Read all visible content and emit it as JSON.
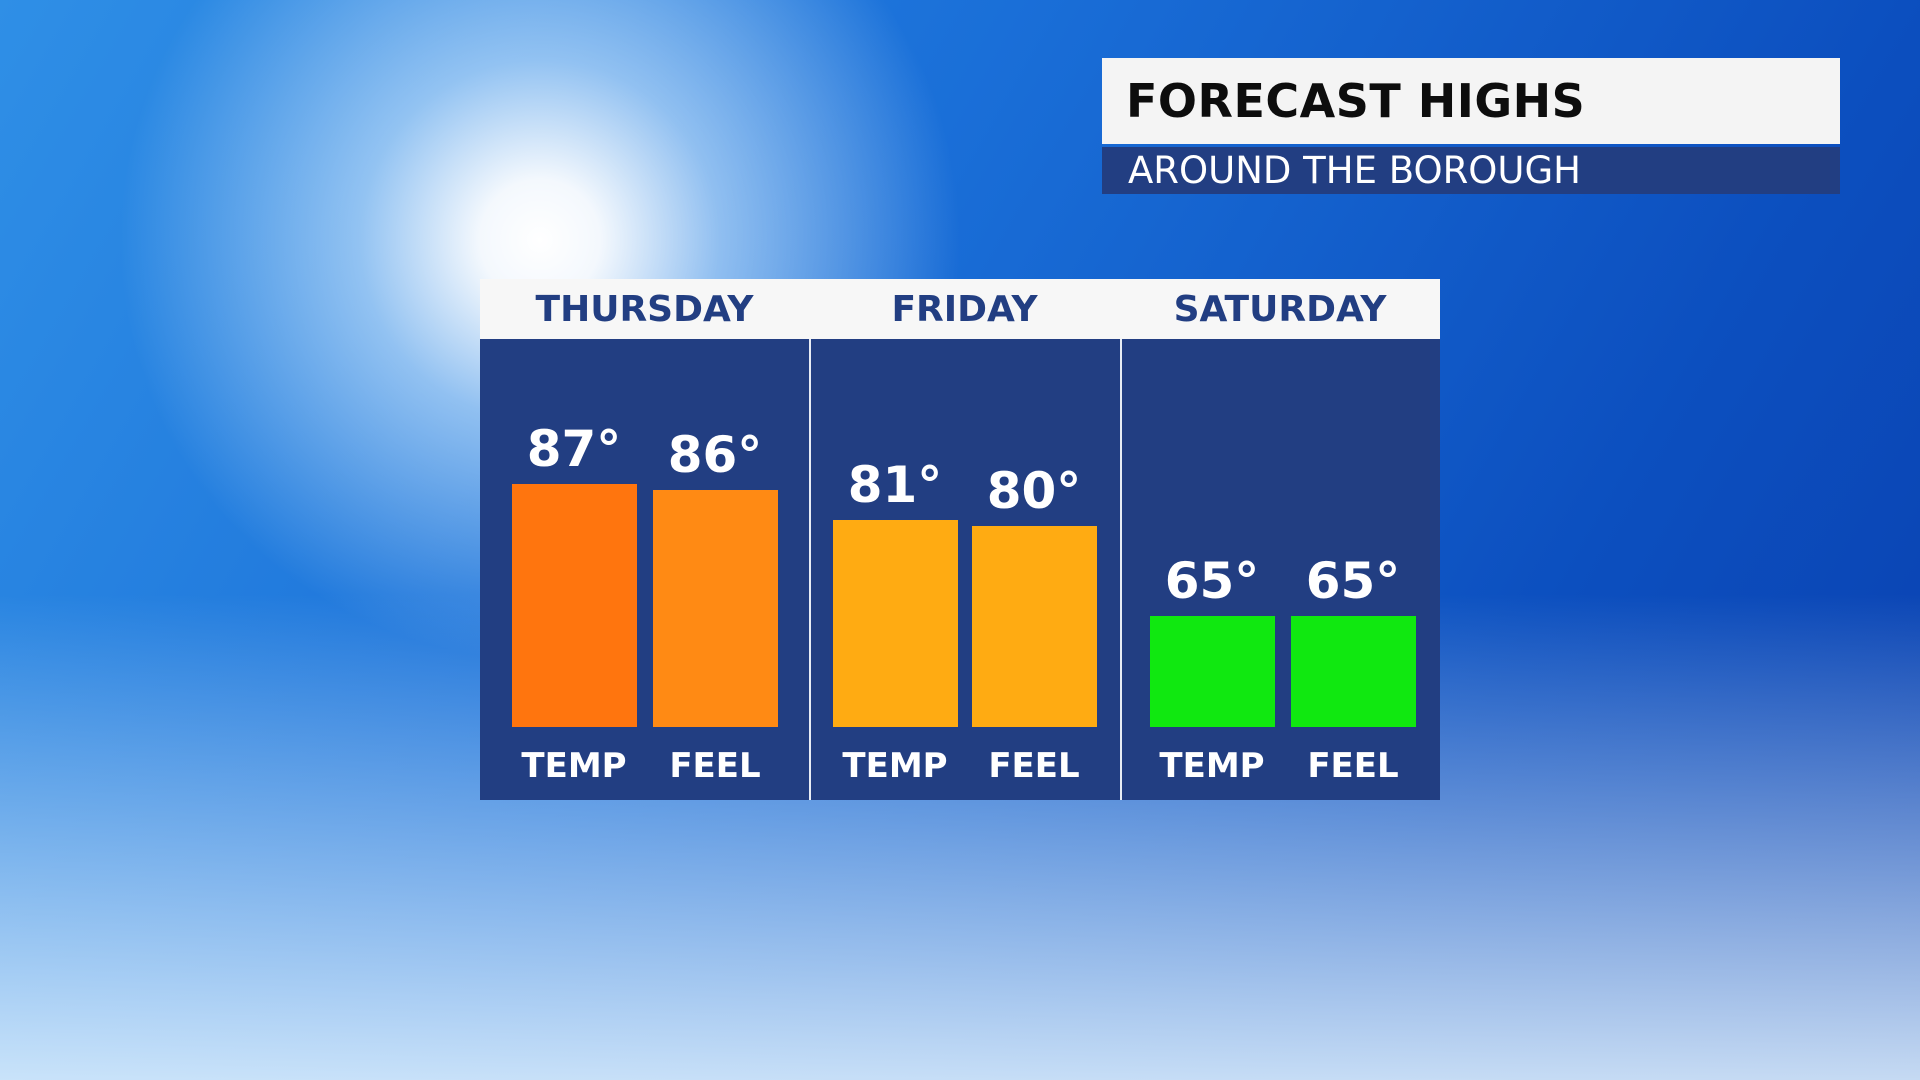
{
  "header": {
    "title": "FORECAST HIGHS",
    "subtitle": "AROUND THE BOROUGH"
  },
  "chart_data": {
    "type": "bar",
    "categories": [
      "THURSDAY",
      "FRIDAY",
      "SATURDAY"
    ],
    "bar_labels": [
      "TEMP",
      "FEEL"
    ],
    "series": [
      {
        "name": "TEMP",
        "values": [
          87,
          81,
          65
        ]
      },
      {
        "name": "FEEL",
        "values": [
          86,
          80,
          65
        ]
      }
    ],
    "value_labels": [
      [
        "87°",
        "86°"
      ],
      [
        "81°",
        "80°"
      ],
      [
        "65°",
        "65°"
      ]
    ],
    "colors": [
      [
        "#ff750e",
        "#ff8a14"
      ],
      [
        "#ffab12",
        "#ffab12"
      ],
      [
        "#10e810",
        "#10e810"
      ]
    ],
    "panel_color": "#223e82",
    "grid": false
  }
}
